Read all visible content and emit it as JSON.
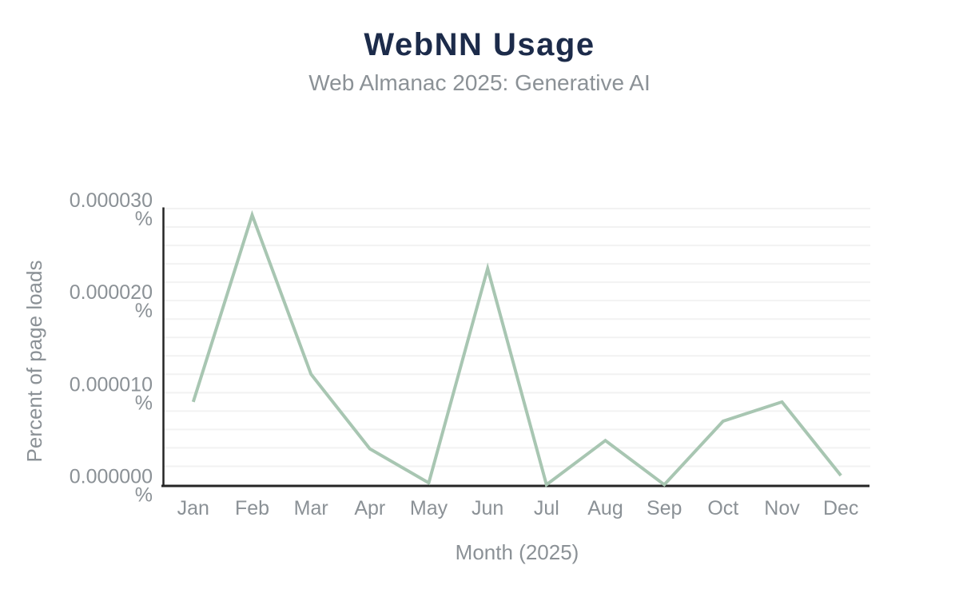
{
  "chart_data": {
    "type": "line",
    "title": "WebNN Usage",
    "subtitle": "Web Almanac 2025: Generative AI",
    "xlabel": "Month (2025)",
    "ylabel": "Percent of page loads",
    "categories": [
      "Jan",
      "Feb",
      "Mar",
      "Apr",
      "May",
      "Jun",
      "Jul",
      "Aug",
      "Sep",
      "Oct",
      "Nov",
      "Dec"
    ],
    "values": [
      9e-06,
      2.93e-05,
      1.2e-05,
      3.9e-06,
      2e-07,
      2.35e-05,
      0,
      4.8e-06,
      0,
      6.9e-06,
      9e-06,
      1e-06
    ],
    "ylim": [
      0,
      3e-05
    ],
    "y_ticks": [
      {
        "value": 0.0,
        "label": "0.000000",
        "unit": "%"
      },
      {
        "value": 1e-05,
        "label": "0.000010",
        "unit": "%"
      },
      {
        "value": 2e-05,
        "label": "0.000020",
        "unit": "%"
      },
      {
        "value": 3e-05,
        "label": "0.000030",
        "unit": "%"
      }
    ],
    "grid": {
      "horizontal": true,
      "minor_step": 2e-06,
      "vertical": false
    },
    "legend_position": "none",
    "colors": {
      "title": "#1c2b4a",
      "subtitle": "#8b9196",
      "line": "#a8c6b2",
      "grid": "#f2f2f2",
      "axis": "#252525",
      "tick_text": "#8b9196"
    }
  }
}
